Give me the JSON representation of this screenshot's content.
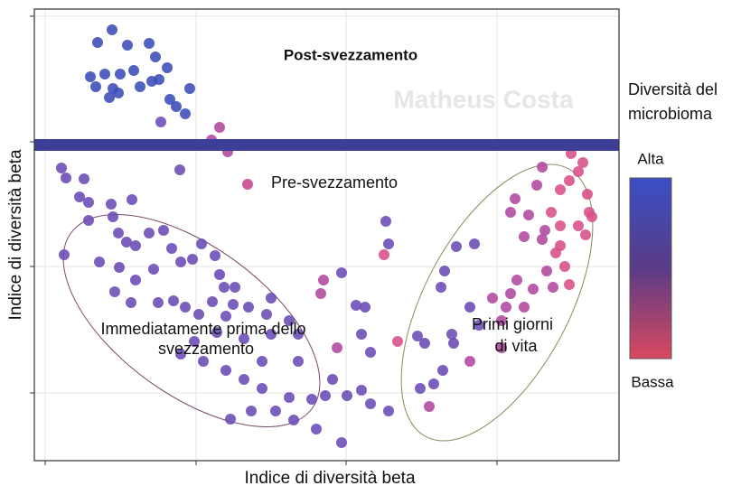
{
  "chart_data": {
    "type": "scatter",
    "title": "Post-svezzamento",
    "xlabel": "Indice di diversità beta",
    "ylabel": "Indice di diversità beta",
    "watermark": "Matheus Costa",
    "annotations": [
      {
        "text": [
          "Pre-svezzamento"
        ]
      },
      {
        "text": [
          "Immediatamente prima dello",
          "svezzamento"
        ]
      },
      {
        "text": [
          "Primi giorni",
          "di vita"
        ]
      }
    ],
    "colorbar": {
      "title": "Diversità del microbioma",
      "high": "Alta",
      "low": "Bassa",
      "colors": [
        "#3a4fc4",
        "#5a3b86",
        "#d8495f"
      ]
    },
    "xlim": [
      0,
      647
    ],
    "ylim": [
      0,
      500
    ],
    "xticks": [
      12,
      179,
      345,
      512
    ],
    "yticks": [
      75,
      215,
      353,
      492
    ],
    "grid": true,
    "series": [
      {
        "color": "#3b4cb8",
        "x": [
          86,
          70,
          103,
          127,
          147,
          62,
          78,
          95,
          110,
          134,
          130,
          138,
          117,
          87,
          83,
          93,
          172,
          68,
          150,
          157,
          167
        ],
        "values": [
          477,
          463,
          460,
          462,
          435,
          425,
          428,
          428,
          432,
          447,
          420,
          422,
          414,
          412,
          402,
          407,
          412,
          414,
          400,
          392,
          384
        ]
      },
      {
        "color": "#6a4ab5",
        "x": [
          140,
          161,
          30,
          35,
          55,
          50,
          60,
          33,
          85,
          108,
          60,
          87,
          93,
          102,
          72,
          94,
          112,
          127,
          143,
          152,
          162,
          175,
          185,
          200,
          205,
          210,
          197,
          222,
          220,
          132,
          112,
          89,
          107,
          137,
          154,
          167,
          182,
          212,
          237,
          257,
          262,
          282,
          292,
          262,
          232,
          202,
          177,
          162,
          187,
          212,
          232,
          252,
          282,
          267,
          240,
          217,
          252,
          292,
          307,
          287,
          312,
          322,
          340,
          330,
          346,
          340,
          356,
          366,
          362,
          372,
          362,
          372,
          392,
          389,
          392,
          464,
          452,
          432,
          427,
          442,
          424,
          462,
          487,
          467,
          454,
          450,
          482,
          492
        ],
        "values": [
          375,
          322,
          324,
          313,
          312,
          292,
          286,
          228,
          284,
          289,
          266,
          270,
          252,
          242,
          220,
          214,
          238,
          252,
          255,
          235,
          220,
          223,
          240,
          227,
          206,
          192,
          176,
          192,
          173,
          212,
          200,
          187,
          175,
          175,
          177,
          170,
          162,
          160,
          170,
          162,
          180,
          155,
          140,
          140,
          135,
          142,
          132,
          118,
          110,
          100,
          90,
          80,
          70,
          55,
          55,
          46,
          110,
          110,
          68,
          45,
          35,
          72,
          20,
          90,
          72,
          208,
          172,
          170,
          140,
          120,
          78,
          63,
          55,
          265,
          240,
          130,
          100,
          130,
          80,
          85,
          138,
          140,
          240,
          237,
          210,
          192,
          170,
          150
        ]
      },
      {
        "color": "#b0479f",
        "x": [
          196,
          214,
          205,
          320,
          317,
          335,
          507,
          517,
          527,
          542,
          552,
          482,
          517,
          522,
          534,
          532,
          547,
          542,
          562,
          527,
          565,
          574,
          567,
          556,
          562,
          437
        ],
        "values": [
          355,
          342,
          369,
          200,
          185,
          125,
          180,
          155,
          185,
          170,
          190,
          110,
          125,
          170,
          200,
          290,
          272,
          248,
          245,
          275,
          255,
          192,
          210,
          305,
          325,
          60
        ]
      },
      {
        "color": "#d84f89",
        "x": [
          582,
          592,
          572,
          602,
          617,
          577,
          587,
          594,
          602,
          612,
          607,
          614,
          610,
          582,
          592,
          582,
          532,
          402,
          387
        ],
        "values": [
          300,
          310,
          275,
          260,
          270,
          230,
          215,
          340,
          320,
          295,
          330,
          275,
          250,
          238,
          195,
          260,
          350,
          132,
          228
        ]
      }
    ]
  }
}
